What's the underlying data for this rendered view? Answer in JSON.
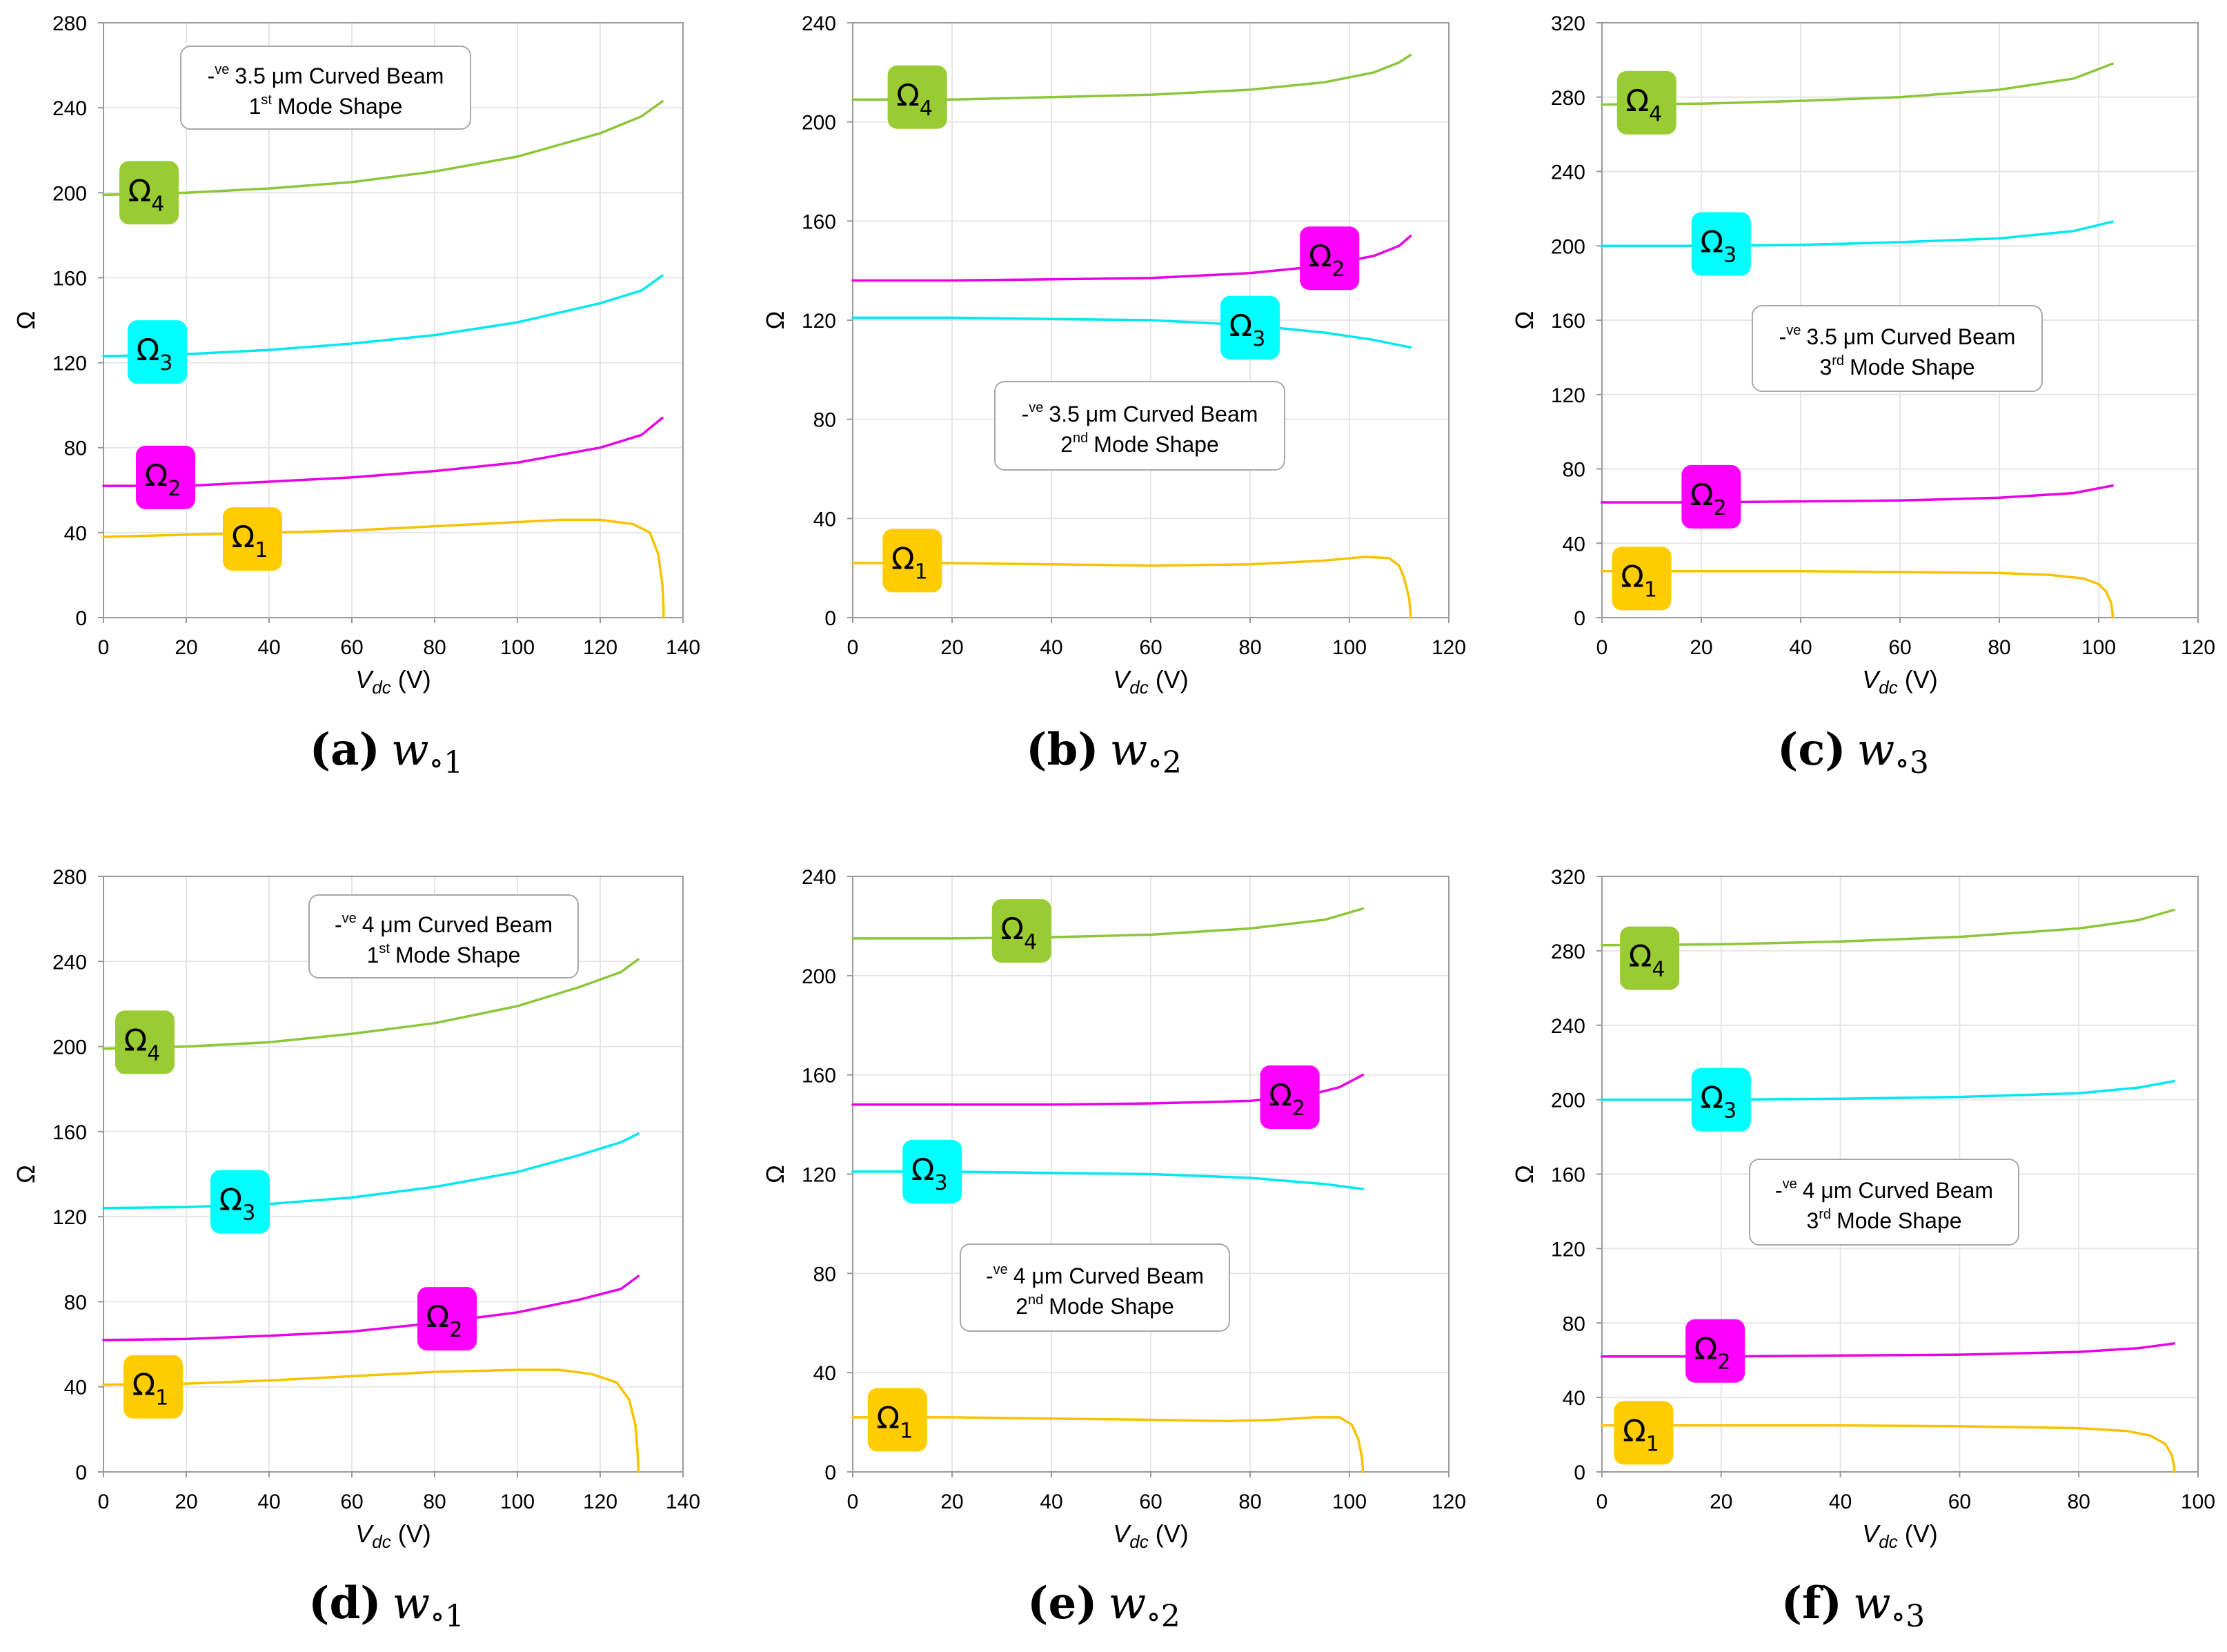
{
  "colors": {
    "omega1": "#f8c200",
    "omega2": "#e800e8",
    "omega3": "#00e8f0",
    "omega4": "#8cc63a",
    "badge_omega1": "#ffcc00",
    "badge_omega2": "#ff00ff",
    "badge_omega3": "#00ffff",
    "badge_omega4": "#99cc33",
    "grid": "#e6e6e6",
    "axis": "#999999"
  },
  "chart_data": [
    {
      "type": "line",
      "panel_id": "a",
      "caption": {
        "letter": "(a)",
        "var": "w",
        "sub": "∘1"
      },
      "annotation": {
        "sign": "-",
        "sup": "ve",
        "line1": "3.5 μm Curved Beam",
        "line2_num": "1",
        "line2_sup": "st",
        "line2_rest": "Mode Shape"
      },
      "xlabel": {
        "main": "V",
        "sub": "dc",
        "unit": "(V)"
      },
      "ylabel": "Ω",
      "xlim": [
        0,
        140
      ],
      "ylim": [
        0,
        280
      ],
      "xticks": [
        "0",
        "20",
        "40",
        "60",
        "80",
        "100",
        "120",
        "140"
      ],
      "yticks": [
        "0",
        "40",
        "80",
        "120",
        "160",
        "200",
        "240",
        "280"
      ],
      "series": [
        {
          "name": "Ω1",
          "key": "omega1",
          "x": [
            0,
            20,
            40,
            60,
            80,
            100,
            110,
            120,
            128,
            132,
            134,
            135,
            135.3,
            135.3
          ],
          "y": [
            38,
            39,
            40,
            41,
            43,
            45,
            46,
            46,
            44,
            40,
            30,
            16,
            5,
            0
          ]
        },
        {
          "name": "Ω2",
          "key": "omega2",
          "x": [
            0,
            20,
            40,
            60,
            80,
            100,
            120,
            130,
            135
          ],
          "y": [
            62,
            62,
            64,
            66,
            69,
            73,
            80,
            86,
            94
          ]
        },
        {
          "name": "Ω3",
          "key": "omega3",
          "x": [
            0,
            20,
            40,
            60,
            80,
            100,
            120,
            130,
            135
          ],
          "y": [
            123,
            124,
            126,
            129,
            133,
            139,
            148,
            154,
            161
          ]
        },
        {
          "name": "Ω4",
          "key": "omega4",
          "x": [
            0,
            20,
            40,
            60,
            80,
            100,
            120,
            130,
            135
          ],
          "y": [
            199,
            200,
            202,
            205,
            210,
            217,
            228,
            236,
            243
          ]
        }
      ],
      "badges": [
        {
          "label": "Ω",
          "sub": "1",
          "key": "badge_omega1",
          "x": 36,
          "y": 37
        },
        {
          "label": "Ω",
          "sub": "2",
          "key": "badge_omega2",
          "x": 15,
          "y": 66
        },
        {
          "label": "Ω",
          "sub": "3",
          "key": "badge_omega3",
          "x": 13,
          "y": 125
        },
        {
          "label": "Ω",
          "sub": "4",
          "key": "badge_omega4",
          "x": 11,
          "y": 200
        }
      ]
    },
    {
      "type": "line",
      "panel_id": "b",
      "caption": {
        "letter": "(b)",
        "var": "w",
        "sub": "∘2"
      },
      "annotation": {
        "sign": "-",
        "sup": "ve",
        "line1": "3.5 μm Curved Beam",
        "line2_num": "2",
        "line2_sup": "nd",
        "line2_rest": "Mode Shape"
      },
      "xlabel": {
        "main": "V",
        "sub": "dc",
        "unit": "(V)"
      },
      "ylabel": "Ω",
      "xlim": [
        0,
        120
      ],
      "ylim": [
        0,
        240
      ],
      "xticks": [
        "0",
        "20",
        "40",
        "60",
        "80",
        "100",
        "120"
      ],
      "yticks": [
        "0",
        "40",
        "80",
        "120",
        "160",
        "200",
        "240"
      ],
      "series": [
        {
          "name": "Ω1",
          "key": "omega1",
          "x": [
            0,
            20,
            40,
            60,
            80,
            95,
            103,
            108,
            110,
            111,
            112,
            112.3,
            112.3
          ],
          "y": [
            22,
            22,
            21.5,
            21,
            21.5,
            23,
            24.5,
            24,
            21,
            16,
            8,
            2,
            0
          ]
        },
        {
          "name": "Ω2",
          "key": "omega2",
          "x": [
            0,
            20,
            40,
            60,
            80,
            95,
            105,
            110,
            112.3
          ],
          "y": [
            136,
            136,
            136.5,
            137,
            139,
            142,
            146,
            150,
            154
          ]
        },
        {
          "name": "Ω3",
          "key": "omega3",
          "x": [
            0,
            20,
            40,
            60,
            80,
            95,
            105,
            112.3
          ],
          "y": [
            121,
            121,
            120.5,
            120,
            118,
            115,
            112,
            109
          ]
        },
        {
          "name": "Ω4",
          "key": "omega4",
          "x": [
            0,
            20,
            40,
            60,
            80,
            95,
            105,
            110,
            112.3
          ],
          "y": [
            209,
            209,
            210,
            211,
            213,
            216,
            220,
            224,
            227
          ]
        }
      ],
      "badges": [
        {
          "label": "Ω",
          "sub": "1",
          "key": "badge_omega1",
          "x": 12,
          "y": 23
        },
        {
          "label": "Ω",
          "sub": "2",
          "key": "badge_omega2",
          "x": 96,
          "y": 145
        },
        {
          "label": "Ω",
          "sub": "3",
          "key": "badge_omega3",
          "x": 80,
          "y": 117
        },
        {
          "label": "Ω",
          "sub": "4",
          "key": "badge_omega4",
          "x": 13,
          "y": 210
        }
      ]
    },
    {
      "type": "line",
      "panel_id": "c",
      "caption": {
        "letter": "(c)",
        "var": "w",
        "sub": "∘3"
      },
      "annotation": {
        "sign": "-",
        "sup": "ve",
        "line1": "3.5 μm Curved Beam",
        "line2_num": "3",
        "line2_sup": "rd",
        "line2_rest": "Mode Shape"
      },
      "xlabel": {
        "main": "V",
        "sub": "dc",
        "unit": "(V)"
      },
      "ylabel": "Ω",
      "xlim": [
        0,
        120
      ],
      "ylim": [
        0,
        320
      ],
      "xticks": [
        "0",
        "20",
        "40",
        "60",
        "80",
        "100",
        "120"
      ],
      "yticks": [
        "0",
        "40",
        "80",
        "120",
        "160",
        "200",
        "240",
        "280",
        "320"
      ],
      "series": [
        {
          "name": "Ω1",
          "key": "omega1",
          "x": [
            0,
            20,
            40,
            60,
            80,
            90,
            97,
            100,
            101.5,
            102.5,
            102.8,
            102.8
          ],
          "y": [
            25,
            25,
            25,
            24.5,
            24,
            23,
            21,
            18,
            14,
            8,
            2,
            0
          ]
        },
        {
          "name": "Ω2",
          "key": "omega2",
          "x": [
            0,
            20,
            40,
            60,
            80,
            95,
            102.8
          ],
          "y": [
            62,
            62,
            62.5,
            63,
            64.5,
            67,
            71
          ]
        },
        {
          "name": "Ω3",
          "key": "omega3",
          "x": [
            0,
            20,
            40,
            60,
            80,
            95,
            102.8
          ],
          "y": [
            200,
            200,
            200.5,
            202,
            204,
            208,
            213
          ]
        },
        {
          "name": "Ω4",
          "key": "omega4",
          "x": [
            0,
            20,
            40,
            60,
            80,
            95,
            102.8
          ],
          "y": [
            276,
            276.5,
            278,
            280,
            284,
            290,
            298
          ]
        }
      ],
      "badges": [
        {
          "label": "Ω",
          "sub": "1",
          "key": "badge_omega1",
          "x": 8,
          "y": 21
        },
        {
          "label": "Ω",
          "sub": "2",
          "key": "badge_omega2",
          "x": 22,
          "y": 65
        },
        {
          "label": "Ω",
          "sub": "3",
          "key": "badge_omega3",
          "x": 24,
          "y": 201
        },
        {
          "label": "Ω",
          "sub": "4",
          "key": "badge_omega4",
          "x": 9,
          "y": 277
        }
      ]
    },
    {
      "type": "line",
      "panel_id": "d",
      "caption": {
        "letter": "(d)",
        "var": "w",
        "sub": "∘1"
      },
      "annotation": {
        "sign": "-",
        "sup": "ve",
        "line1": "4 μm Curved Beam",
        "line2_num": "1",
        "line2_sup": "st",
        "line2_rest": "Mode Shape"
      },
      "xlabel": {
        "main": "V",
        "sub": "dc",
        "unit": "(V)"
      },
      "ylabel": "Ω",
      "xlim": [
        0,
        140
      ],
      "ylim": [
        0,
        280
      ],
      "xticks": [
        "0",
        "20",
        "40",
        "60",
        "80",
        "100",
        "120",
        "140"
      ],
      "yticks": [
        "0",
        "40",
        "80",
        "120",
        "160",
        "200",
        "240",
        "280"
      ],
      "series": [
        {
          "name": "Ω1",
          "key": "omega1",
          "x": [
            0,
            20,
            40,
            60,
            80,
            100,
            110,
            118,
            124,
            127,
            128.5,
            129,
            129.2,
            129.2
          ],
          "y": [
            41,
            41.5,
            43,
            45,
            47,
            48,
            48,
            46,
            42,
            34,
            22,
            10,
            3,
            0
          ]
        },
        {
          "name": "Ω2",
          "key": "omega2",
          "x": [
            0,
            20,
            40,
            60,
            80,
            100,
            115,
            125,
            129.2
          ],
          "y": [
            62,
            62.5,
            64,
            66,
            70,
            75,
            81,
            86,
            92
          ]
        },
        {
          "name": "Ω3",
          "key": "omega3",
          "x": [
            0,
            20,
            40,
            60,
            80,
            100,
            115,
            125,
            129.2
          ],
          "y": [
            124,
            124.5,
            126,
            129,
            134,
            141,
            149,
            155,
            159
          ]
        },
        {
          "name": "Ω4",
          "key": "omega4",
          "x": [
            0,
            20,
            40,
            60,
            80,
            100,
            115,
            125,
            129.2
          ],
          "y": [
            199,
            200,
            202,
            206,
            211,
            219,
            228,
            235,
            241
          ]
        }
      ],
      "badges": [
        {
          "label": "Ω",
          "sub": "1",
          "key": "badge_omega1",
          "x": 12,
          "y": 40
        },
        {
          "label": "Ω",
          "sub": "2",
          "key": "badge_omega2",
          "x": 83,
          "y": 72
        },
        {
          "label": "Ω",
          "sub": "3",
          "key": "badge_omega3",
          "x": 33,
          "y": 127
        },
        {
          "label": "Ω",
          "sub": "4",
          "key": "badge_omega4",
          "x": 10,
          "y": 202
        }
      ]
    },
    {
      "type": "line",
      "panel_id": "e",
      "caption": {
        "letter": "(e)",
        "var": "w",
        "sub": "∘2"
      },
      "annotation": {
        "sign": "-",
        "sup": "ve",
        "line1": "4 μm Curved Beam",
        "line2_num": "2",
        "line2_sup": "nd",
        "line2_rest": "Mode Shape"
      },
      "xlabel": {
        "main": "V",
        "sub": "dc",
        "unit": "(V)"
      },
      "ylabel": "Ω",
      "xlim": [
        0,
        120
      ],
      "ylim": [
        0,
        240
      ],
      "xticks": [
        "0",
        "20",
        "40",
        "60",
        "80",
        "100",
        "120"
      ],
      "yticks": [
        "0",
        "40",
        "80",
        "120",
        "160",
        "200",
        "240"
      ],
      "series": [
        {
          "name": "Ω1",
          "key": "omega1",
          "x": [
            0,
            20,
            40,
            60,
            75,
            85,
            93,
            98,
            100.5,
            101.8,
            102.5,
            102.7,
            102.7
          ],
          "y": [
            22,
            22,
            21.5,
            21,
            20.5,
            21,
            22,
            22,
            19,
            13,
            6,
            1,
            0
          ]
        },
        {
          "name": "Ω2",
          "key": "omega2",
          "x": [
            0,
            20,
            40,
            60,
            80,
            92,
            98,
            102.7
          ],
          "y": [
            148,
            148,
            148,
            148.5,
            149.5,
            152,
            155,
            160
          ]
        },
        {
          "name": "Ω3",
          "key": "omega3",
          "x": [
            0,
            20,
            40,
            60,
            80,
            95,
            102.7
          ],
          "y": [
            121,
            121,
            120.5,
            120,
            118.5,
            116,
            114
          ]
        },
        {
          "name": "Ω4",
          "key": "omega4",
          "x": [
            0,
            20,
            40,
            60,
            80,
            95,
            102.7
          ],
          "y": [
            215,
            215,
            215.5,
            216.5,
            219,
            222.5,
            227
          ]
        }
      ],
      "badges": [
        {
          "label": "Ω",
          "sub": "1",
          "key": "badge_omega1",
          "x": 9,
          "y": 21
        },
        {
          "label": "Ω",
          "sub": "2",
          "key": "badge_omega2",
          "x": 88,
          "y": 151
        },
        {
          "label": "Ω",
          "sub": "3",
          "key": "badge_omega3",
          "x": 16,
          "y": 121
        },
        {
          "label": "Ω",
          "sub": "4",
          "key": "badge_omega4",
          "x": 34,
          "y": 218
        }
      ]
    },
    {
      "type": "line",
      "panel_id": "f",
      "caption": {
        "letter": "(f)",
        "var": "w",
        "sub": "∘3"
      },
      "annotation": {
        "sign": "-",
        "sup": "ve",
        "line1": "4 μm Curved Beam",
        "line2_num": "3",
        "line2_sup": "rd",
        "line2_rest": "Mode Shape"
      },
      "xlabel": {
        "main": "V",
        "sub": "dc",
        "unit": "(V)"
      },
      "ylabel": "Ω",
      "xlim": [
        0,
        100
      ],
      "ylim": [
        0,
        320
      ],
      "xticks": [
        "0",
        "20",
        "40",
        "60",
        "80",
        "100"
      ],
      "yticks": [
        "0",
        "40",
        "80",
        "120",
        "160",
        "200",
        "240",
        "280",
        "320"
      ],
      "series": [
        {
          "name": "Ω1",
          "key": "omega1",
          "x": [
            0,
            20,
            40,
            60,
            80,
            88,
            92,
            94.5,
            95.6,
            96,
            96
          ],
          "y": [
            25,
            25,
            25,
            24.5,
            23.5,
            22,
            19.5,
            15,
            9,
            3,
            0
          ]
        },
        {
          "name": "Ω2",
          "key": "omega2",
          "x": [
            0,
            20,
            40,
            60,
            80,
            90,
            96
          ],
          "y": [
            62,
            62,
            62.5,
            63,
            64.5,
            66.5,
            69
          ]
        },
        {
          "name": "Ω3",
          "key": "omega3",
          "x": [
            0,
            20,
            40,
            60,
            80,
            90,
            96
          ],
          "y": [
            200,
            200,
            200.5,
            201.5,
            203.5,
            206.5,
            210
          ]
        },
        {
          "name": "Ω4",
          "key": "omega4",
          "x": [
            0,
            20,
            40,
            60,
            80,
            90,
            96
          ],
          "y": [
            283,
            283.5,
            285,
            287.5,
            292,
            296.5,
            302
          ]
        }
      ],
      "badges": [
        {
          "label": "Ω",
          "sub": "1",
          "key": "badge_omega1",
          "x": 7,
          "y": 21
        },
        {
          "label": "Ω",
          "sub": "2",
          "key": "badge_omega2",
          "x": 19,
          "y": 65
        },
        {
          "label": "Ω",
          "sub": "3",
          "key": "badge_omega3",
          "x": 20,
          "y": 200
        },
        {
          "label": "Ω",
          "sub": "4",
          "key": "badge_omega4",
          "x": 8,
          "y": 276
        }
      ]
    }
  ]
}
